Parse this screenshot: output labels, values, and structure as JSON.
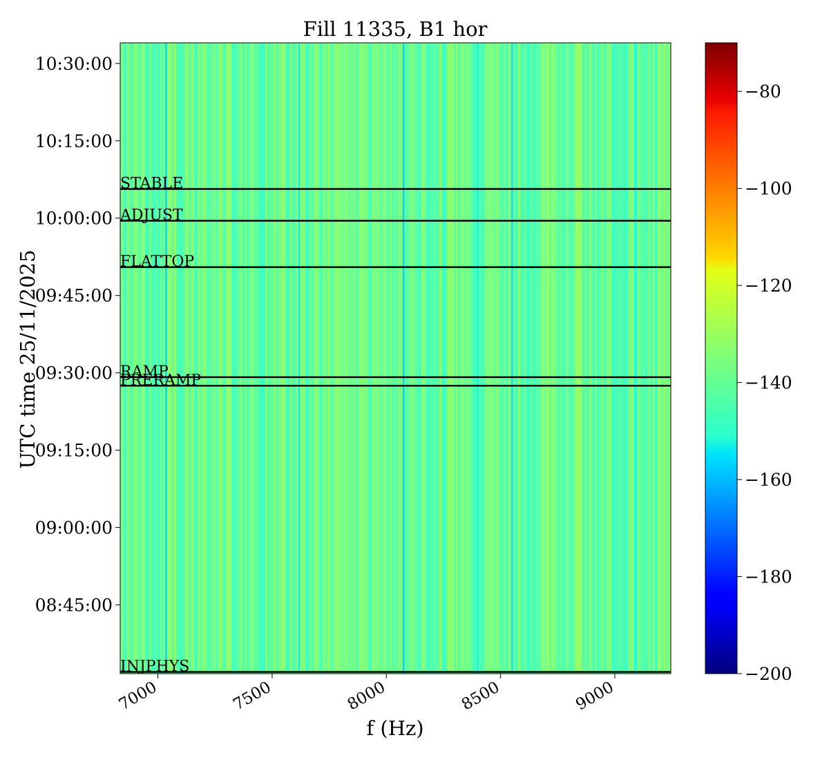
{
  "chart_data": {
    "type": "heatmap",
    "title": "Fill 11335, B1 hor",
    "xlabel": "f (Hz)",
    "ylabel": "UTC time 25/11/2025",
    "xlim": [
      6835,
      9245
    ],
    "ylim": [
      "08:31:40",
      "10:34:00"
    ],
    "xticks": [
      7000,
      7500,
      8000,
      8500,
      9000
    ],
    "xtick_labels": [
      "7000",
      "7500",
      "8000",
      "8500",
      "9000"
    ],
    "yticks": [
      "08:45:00",
      "09:00:00",
      "09:15:00",
      "09:30:00",
      "09:45:00",
      "10:00:00",
      "10:15:00",
      "10:30:00"
    ],
    "ytick_labels": [
      "08:45:00",
      "09:00:00",
      "09:15:00",
      "09:30:00",
      "09:45:00",
      "10:00:00",
      "10:15:00",
      "10:30:00"
    ],
    "colorbar": {
      "colormap": "jet",
      "range": [
        -200,
        -70
      ],
      "ticks": [
        -80,
        -100,
        -120,
        -140,
        -160,
        -180,
        -200
      ],
      "tick_labels": [
        "−80",
        "−100",
        "−120",
        "−140",
        "−160",
        "−180",
        "−200"
      ]
    },
    "background_value": -138,
    "lines": [
      {
        "f": 7035,
        "value": -157
      },
      {
        "f": 7618,
        "value": -153
      },
      {
        "f": 8075,
        "value": -158
      },
      {
        "f": 8400,
        "value": -152
      },
      {
        "f": 8550,
        "value": -156
      },
      {
        "f": 9090,
        "value": -150
      }
    ],
    "events": [
      {
        "label": "STABLE",
        "time": "10:05:40"
      },
      {
        "label": "ADJUST",
        "time": "09:59:30"
      },
      {
        "label": "FLATTOP",
        "time": "09:50:30"
      },
      {
        "label": "RAMP",
        "time": "09:29:10"
      },
      {
        "label": "PRERAMP",
        "time": "09:27:30"
      },
      {
        "label": "INJPHYS",
        "time": "08:32:00"
      }
    ]
  }
}
